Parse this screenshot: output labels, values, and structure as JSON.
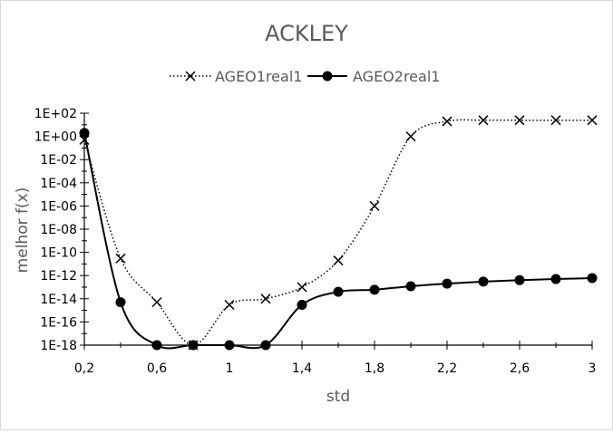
{
  "chart_data": {
    "type": "line",
    "title": "ACKLEY",
    "xlabel": "std",
    "ylabel": "melhor f(x)",
    "xlim": [
      0.2,
      3.0
    ],
    "ylim": [
      1e-18,
      100.0
    ],
    "y_scale": "log",
    "grid": false,
    "legend_position": "top",
    "x_ticks": [
      "0,2",
      "0,6",
      "1",
      "1,4",
      "1,8",
      "2,2",
      "2,6",
      "3"
    ],
    "x_tick_values": [
      0.2,
      0.6,
      1.0,
      1.4,
      1.8,
      2.2,
      2.6,
      3.0
    ],
    "y_ticks": [
      "1E+02",
      "1E+00",
      "1E-02",
      "1E-04",
      "1E-06",
      "1E-08",
      "1E-10",
      "1E-12",
      "1E-14",
      "1E-16",
      "1E-18"
    ],
    "y_tick_exponents": [
      2,
      0,
      -2,
      -4,
      -6,
      -8,
      -10,
      -12,
      -14,
      -16,
      -18
    ],
    "x": [
      0.2,
      0.4,
      0.6,
      0.8,
      1.0,
      1.2,
      1.4,
      1.6,
      1.8,
      2.0,
      2.2,
      2.4,
      2.6,
      2.8,
      3.0
    ],
    "series": [
      {
        "name": "AGEO1real1",
        "marker": "x",
        "line": "dotted",
        "color": "#000000",
        "values": [
          0.5,
          3e-11,
          5e-15,
          1e-18,
          3e-15,
          1e-14,
          1e-13,
          2e-11,
          1e-06,
          1.0,
          20.0,
          25.0,
          25.0,
          25.0,
          25.0
        ]
      },
      {
        "name": "AGEO2real1",
        "marker": "circle",
        "line": "solid",
        "color": "#000000",
        "values": [
          2.0,
          5e-15,
          1e-18,
          1e-18,
          1e-18,
          1e-18,
          3e-15,
          4e-14,
          6e-14,
          1.2e-13,
          2e-13,
          3e-13,
          4e-13,
          5e-13,
          6e-13
        ]
      }
    ]
  }
}
